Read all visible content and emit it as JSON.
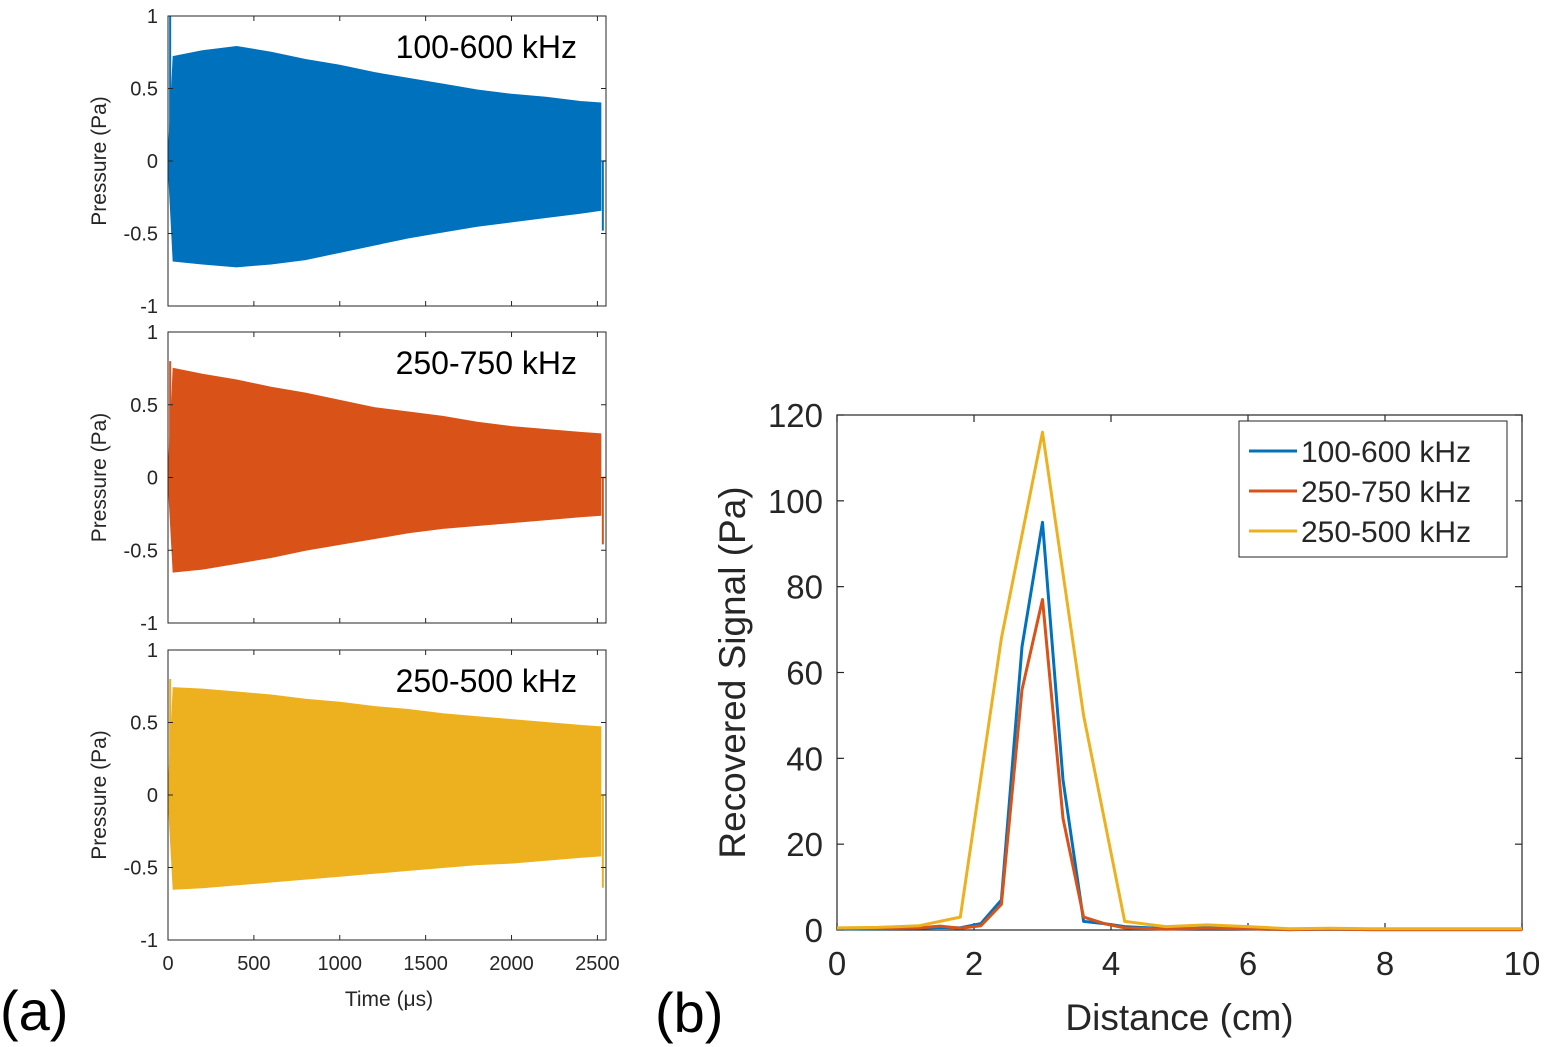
{
  "figure": {
    "panel_a_label": "(a)",
    "panel_b_label": "(b)"
  },
  "chart_data": [
    {
      "type": "area",
      "panel": "(a) top",
      "annotation": "100-600 kHz",
      "ylabel": "Pressure (Pa)",
      "xlabel": "",
      "xlim": [
        0,
        2550
      ],
      "ylim": [
        -1,
        1
      ],
      "yticks": [
        -1,
        -0.5,
        0,
        0.5,
        1
      ],
      "ytick_labels": [
        "-1",
        "-0.5",
        "0",
        "0.5",
        "1"
      ],
      "grid": false,
      "color": "#0072BD",
      "envelope_x": [
        30,
        200,
        400,
        600,
        800,
        1000,
        1200,
        1400,
        1600,
        1800,
        2000,
        2200,
        2400,
        2520
      ],
      "envelope_upper": [
        0.72,
        0.76,
        0.79,
        0.75,
        0.7,
        0.66,
        0.61,
        0.57,
        0.53,
        0.49,
        0.46,
        0.44,
        0.41,
        0.4
      ],
      "envelope_lower": [
        -0.69,
        -0.71,
        -0.73,
        -0.71,
        -0.68,
        -0.63,
        -0.58,
        -0.53,
        -0.49,
        -0.45,
        -0.42,
        -0.39,
        -0.36,
        -0.34
      ],
      "edge_spikes": {
        "start_max": 1.0,
        "end_min": -0.48
      }
    },
    {
      "type": "area",
      "panel": "(a) middle",
      "annotation": "250-750 kHz",
      "ylabel": "Pressure (Pa)",
      "xlabel": "",
      "xlim": [
        0,
        2550
      ],
      "ylim": [
        -1,
        1
      ],
      "yticks": [
        -1,
        -0.5,
        0,
        0.5,
        1
      ],
      "ytick_labels": [
        "-1",
        "-0.5",
        "0",
        "0.5",
        "1"
      ],
      "grid": false,
      "color": "#D95319",
      "envelope_x": [
        30,
        200,
        400,
        600,
        800,
        1000,
        1200,
        1400,
        1600,
        1800,
        2000,
        2200,
        2400,
        2520
      ],
      "envelope_upper": [
        0.75,
        0.71,
        0.67,
        0.62,
        0.58,
        0.53,
        0.48,
        0.45,
        0.42,
        0.38,
        0.35,
        0.33,
        0.31,
        0.3
      ],
      "envelope_lower": [
        -0.65,
        -0.63,
        -0.59,
        -0.55,
        -0.5,
        -0.46,
        -0.42,
        -0.38,
        -0.35,
        -0.33,
        -0.31,
        -0.29,
        -0.27,
        -0.26
      ],
      "edge_spikes": {
        "start_max": 0.8,
        "end_min": -0.46
      }
    },
    {
      "type": "area",
      "panel": "(a) bottom",
      "annotation": "250-500 kHz",
      "ylabel": "Pressure (Pa)",
      "xlabel": "Time (μs)",
      "xlim": [
        0,
        2550
      ],
      "ylim": [
        -1,
        1
      ],
      "xticks": [
        0,
        500,
        1000,
        1500,
        2000,
        2500
      ],
      "xtick_labels": [
        "0",
        "500",
        "1000",
        "1500",
        "2000",
        "2500"
      ],
      "yticks": [
        -1,
        -0.5,
        0,
        0.5,
        1
      ],
      "ytick_labels": [
        "-1",
        "-0.5",
        "0",
        "0.5",
        "1"
      ],
      "grid": false,
      "color": "#EDB120",
      "envelope_x": [
        30,
        200,
        400,
        600,
        800,
        1000,
        1200,
        1400,
        1600,
        1800,
        2000,
        2200,
        2400,
        2520
      ],
      "envelope_upper": [
        0.74,
        0.73,
        0.71,
        0.69,
        0.66,
        0.64,
        0.61,
        0.59,
        0.56,
        0.54,
        0.52,
        0.5,
        0.48,
        0.47
      ],
      "envelope_lower": [
        -0.65,
        -0.64,
        -0.62,
        -0.6,
        -0.58,
        -0.56,
        -0.54,
        -0.52,
        -0.5,
        -0.48,
        -0.47,
        -0.45,
        -0.43,
        -0.42
      ],
      "edge_spikes": {
        "start_max": 0.8,
        "end_min": -0.64
      }
    },
    {
      "type": "line",
      "panel": "(b)",
      "title": "",
      "xlabel": "Distance (cm)",
      "ylabel": "Recovered Signal (Pa)",
      "xlim": [
        0,
        10
      ],
      "ylim": [
        0,
        120
      ],
      "xticks": [
        0,
        2,
        4,
        6,
        8,
        10
      ],
      "xtick_labels": [
        "0",
        "2",
        "4",
        "6",
        "8",
        "10"
      ],
      "yticks": [
        0,
        20,
        40,
        60,
        80,
        100,
        120
      ],
      "ytick_labels": [
        "0",
        "20",
        "40",
        "60",
        "80",
        "100",
        "120"
      ],
      "grid": false,
      "legend_position": "top-right",
      "series": [
        {
          "name": "100-600 kHz",
          "color": "#0072BD",
          "x": [
            0,
            0.6,
            1.2,
            1.5,
            1.8,
            2.1,
            2.4,
            2.7,
            3.0,
            3.3,
            3.6,
            3.9,
            4.2,
            4.8,
            5.4,
            6.0,
            6.6,
            7.2,
            7.8,
            8.4,
            9.0,
            9.6,
            10
          ],
          "y": [
            0.2,
            0.3,
            0.4,
            0.6,
            0.5,
            1.5,
            7,
            66,
            95,
            35,
            2,
            1.5,
            0.8,
            0.3,
            0.5,
            0.3,
            0.1,
            0.2,
            0.1,
            0.1,
            0.1,
            0.1,
            0.1
          ]
        },
        {
          "name": "250-750 kHz",
          "color": "#D95319",
          "x": [
            0,
            0.6,
            1.2,
            1.5,
            1.8,
            2.1,
            2.4,
            2.7,
            3.0,
            3.3,
            3.6,
            3.9,
            4.2,
            4.8,
            5.4,
            6.0,
            6.6,
            7.2,
            7.8,
            8.4,
            9.0,
            9.6,
            10
          ],
          "y": [
            0.3,
            0.4,
            0.5,
            0.9,
            0.4,
            1.0,
            6,
            56,
            77,
            26,
            3,
            1.5,
            0.5,
            0.2,
            0.4,
            0.3,
            0.1,
            0.2,
            0.1,
            0.1,
            0.1,
            0.1,
            0.1
          ]
        },
        {
          "name": "250-500 kHz",
          "color": "#EDB120",
          "x": [
            0,
            0.6,
            1.2,
            1.8,
            2.4,
            3.0,
            3.6,
            4.2,
            4.8,
            5.4,
            6.0,
            6.6,
            7.2,
            7.8,
            8.4,
            9.0,
            9.6,
            10
          ],
          "y": [
            0.5,
            0.6,
            1.0,
            3,
            68,
            116,
            50,
            2,
            0.8,
            1.2,
            0.8,
            0.3,
            0.4,
            0.3,
            0.3,
            0.3,
            0.3,
            0.3
          ]
        }
      ]
    }
  ]
}
